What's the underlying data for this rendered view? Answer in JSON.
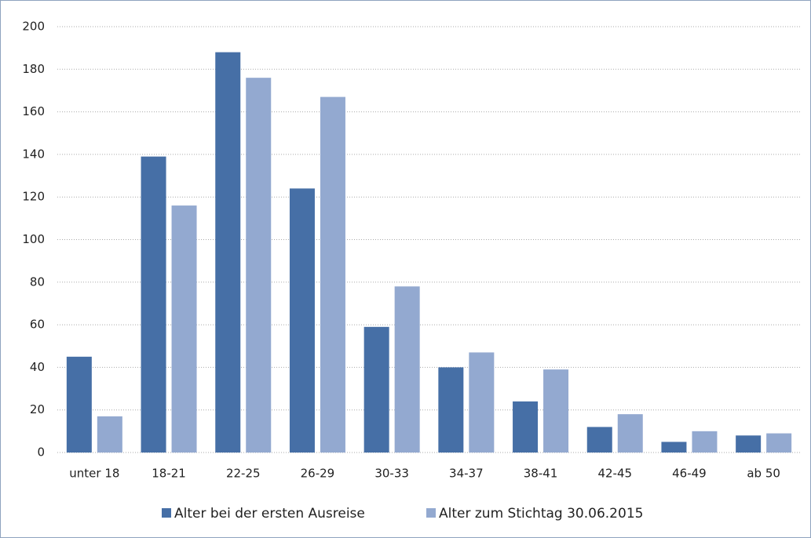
{
  "chart_data": {
    "type": "bar",
    "categories": [
      "unter 18",
      "18-21",
      "22-25",
      "26-29",
      "30-33",
      "34-37",
      "38-41",
      "42-45",
      "46-49",
      "ab 50"
    ],
    "series": [
      {
        "name": "Alter bei der ersten Ausreise",
        "color": "#466fa6",
        "values": [
          45,
          139,
          188,
          124,
          59,
          40,
          24,
          12,
          5,
          8
        ]
      },
      {
        "name": "Alter zum Stichtag 30.06.2015",
        "color": "#93a9d0",
        "values": [
          17,
          116,
          176,
          167,
          78,
          47,
          39,
          18,
          10,
          9
        ]
      }
    ],
    "ylim": [
      0,
      200
    ],
    "yticks": [
      0,
      20,
      40,
      60,
      80,
      100,
      120,
      140,
      160,
      180,
      200
    ],
    "grid": true
  }
}
